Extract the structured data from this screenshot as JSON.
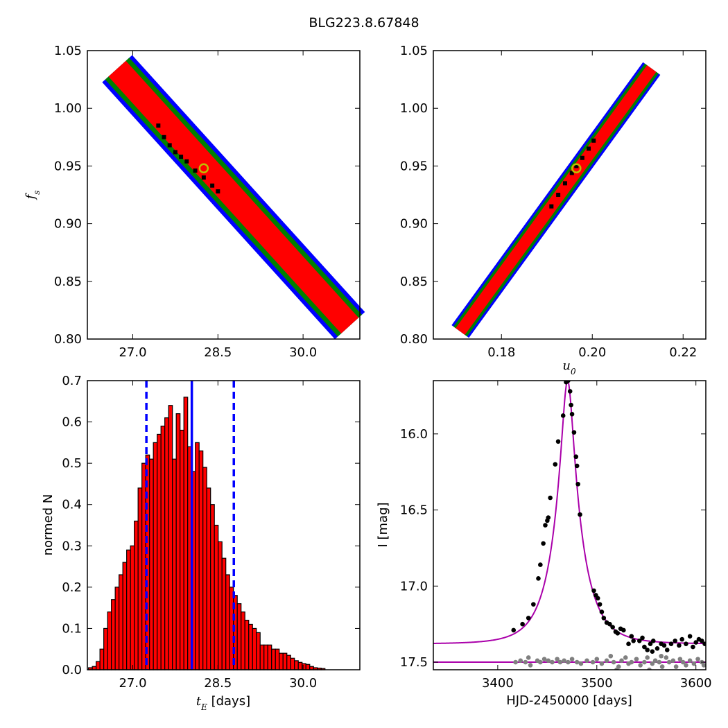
{
  "figure": {
    "title": "BLG223.8.67848"
  },
  "chart_data": [
    {
      "id": "tE_vs_fs",
      "type": "heatmap",
      "title": "",
      "xlabel": "",
      "ylabel": "f_s",
      "xlim": [
        26.2,
        31.0
      ],
      "ylim": [
        0.8,
        1.05
      ],
      "xticks": [
        "27.0",
        "28.5",
        "30.0"
      ],
      "yticks": [
        "0.80",
        "0.85",
        "0.90",
        "0.95",
        "1.00",
        "1.05"
      ],
      "band": {
        "start": [
          26.75,
          1.033
        ],
        "end": [
          30.8,
          0.813
        ],
        "levels": [
          {
            "name": "3-sigma",
            "color": "#0000ff",
            "half_width": 0.32
          },
          {
            "name": "2-sigma",
            "color": "#008000",
            "half_width": 0.25
          },
          {
            "name": "1-sigma",
            "color": "#ff0000",
            "half_width": 0.17
          }
        ]
      },
      "samples": [
        [
          27.45,
          0.985
        ],
        [
          27.55,
          0.975
        ],
        [
          27.65,
          0.968
        ],
        [
          27.75,
          0.962
        ],
        [
          27.85,
          0.958
        ],
        [
          27.95,
          0.954
        ],
        [
          28.1,
          0.946
        ],
        [
          28.25,
          0.94
        ],
        [
          28.4,
          0.933
        ],
        [
          28.5,
          0.928
        ]
      ],
      "best_fit": {
        "x": 28.25,
        "y": 0.948,
        "color": "#bfbf00"
      }
    },
    {
      "id": "u0_vs_fs",
      "type": "heatmap",
      "title": "",
      "xlabel": "u_0",
      "ylabel": "",
      "xlim": [
        0.165,
        0.225
      ],
      "ylim": [
        0.8,
        1.05
      ],
      "xticks": [
        "0.18",
        "0.20",
        "0.22"
      ],
      "yticks": [
        "0.80",
        "0.85",
        "0.90",
        "0.95",
        "1.00",
        "1.05"
      ],
      "band": {
        "start": [
          0.1712,
          0.808
        ],
        "end": [
          0.2128,
          1.033
        ],
        "levels": [
          {
            "name": "3-sigma",
            "color": "#0000ff",
            "half_width": 0.0019
          },
          {
            "name": "2-sigma",
            "color": "#008000",
            "half_width": 0.0014
          },
          {
            "name": "1-sigma",
            "color": "#ff0000",
            "half_width": 0.0008
          }
        ]
      },
      "samples": [
        [
          0.191,
          0.915
        ],
        [
          0.1925,
          0.925
        ],
        [
          0.194,
          0.935
        ],
        [
          0.1955,
          0.944
        ],
        [
          0.1965,
          0.95
        ],
        [
          0.1978,
          0.957
        ],
        [
          0.1992,
          0.965
        ],
        [
          0.2003,
          0.972
        ]
      ],
      "best_fit": {
        "x": 0.1965,
        "y": 0.948,
        "color": "#bfbf00"
      }
    },
    {
      "id": "tE_histogram",
      "type": "bar",
      "title": "",
      "xlabel": "t_E [days]",
      "ylabel": "normed N",
      "xlim": [
        26.2,
        31.0
      ],
      "ylim": [
        0.0,
        0.7
      ],
      "xticks": [
        "27.0",
        "28.5",
        "30.0"
      ],
      "yticks": [
        "0.0",
        "0.1",
        "0.2",
        "0.3",
        "0.4",
        "0.5",
        "0.6",
        "0.7"
      ],
      "bar_color": "#ff0000",
      "bin_start": 26.22,
      "bin_width": 0.0672,
      "values": [
        0.005,
        0.008,
        0.02,
        0.05,
        0.1,
        0.14,
        0.17,
        0.2,
        0.23,
        0.26,
        0.29,
        0.3,
        0.36,
        0.44,
        0.5,
        0.52,
        0.51,
        0.55,
        0.57,
        0.59,
        0.61,
        0.64,
        0.51,
        0.62,
        0.58,
        0.66,
        0.54,
        0.48,
        0.55,
        0.53,
        0.49,
        0.44,
        0.4,
        0.35,
        0.31,
        0.27,
        0.23,
        0.2,
        0.18,
        0.16,
        0.14,
        0.12,
        0.11,
        0.1,
        0.09,
        0.06,
        0.06,
        0.06,
        0.05,
        0.05,
        0.04,
        0.04,
        0.035,
        0.028,
        0.022,
        0.018,
        0.015,
        0.013,
        0.008,
        0.005,
        0.004,
        0.003
      ],
      "median_line": {
        "x": 28.04,
        "color": "#0000ff"
      },
      "interval_lines": {
        "x": [
          27.24,
          28.78
        ],
        "color": "#0000ff"
      }
    },
    {
      "id": "light_curve",
      "type": "scatter",
      "title": "",
      "xlabel": "HJD-2450000 [days]",
      "ylabel": "I [mag]",
      "xlim": [
        3335,
        3610
      ],
      "ylim": [
        17.55,
        15.65
      ],
      "xticks": [
        "3400",
        "3500",
        "3600"
      ],
      "yticks": [
        "16.0",
        "16.5",
        "17.0",
        "17.5"
      ],
      "model": {
        "color": "#aa00aa",
        "t0": 3470.5,
        "u0": 0.1965,
        "tE": 28.1,
        "mag_peak": 15.65,
        "baseline": 17.38
      },
      "baseline_line": {
        "y": 17.5,
        "color": "#aa00aa"
      },
      "series": [
        {
          "name": "",
          "color": "#000000",
          "points": [
            [
              3416,
              17.29
            ],
            [
              3425,
              17.25
            ],
            [
              3431,
              17.21
            ],
            [
              3436,
              17.12
            ],
            [
              3441,
              16.95
            ],
            [
              3443,
              16.86
            ],
            [
              3446,
              16.72
            ],
            [
              3448,
              16.6
            ],
            [
              3450,
              16.57
            ],
            [
              3451,
              16.55
            ],
            [
              3453,
              16.42
            ],
            [
              3458,
              16.2
            ],
            [
              3461,
              16.05
            ],
            [
              3466,
              15.88
            ],
            [
              3469,
              15.66
            ],
            [
              3471,
              15.65
            ],
            [
              3473,
              15.72
            ],
            [
              3474,
              15.81
            ],
            [
              3475,
              15.87
            ],
            [
              3477,
              15.99
            ],
            [
              3479,
              16.15
            ],
            [
              3480,
              16.21
            ],
            [
              3481,
              16.33
            ],
            [
              3483,
              16.53
            ],
            [
              3497,
              17.03
            ],
            [
              3499,
              17.06
            ],
            [
              3501,
              17.08
            ],
            [
              3503,
              17.12
            ],
            [
              3505,
              17.17
            ],
            [
              3507,
              17.21
            ],
            [
              3510,
              17.24
            ],
            [
              3513,
              17.25
            ],
            [
              3516,
              17.27
            ],
            [
              3519,
              17.3
            ],
            [
              3521,
              17.31
            ],
            [
              3524,
              17.28
            ],
            [
              3527,
              17.29
            ],
            [
              3532,
              17.38
            ],
            [
              3535,
              17.33
            ],
            [
              3537,
              17.36
            ],
            [
              3543,
              17.36
            ],
            [
              3548,
              17.4
            ],
            [
              3551,
              17.42
            ],
            [
              3554,
              17.38
            ],
            [
              3557,
              17.36
            ],
            [
              3561,
              17.41
            ],
            [
              3565,
              17.38
            ],
            [
              3568,
              17.39
            ],
            [
              3571,
              17.42
            ],
            [
              3575,
              17.38
            ],
            [
              3579,
              17.36
            ],
            [
              3583,
              17.39
            ],
            [
              3586,
              17.35
            ],
            [
              3590,
              17.38
            ],
            [
              3594,
              17.33
            ],
            [
              3597,
              17.4
            ],
            [
              3600,
              17.37
            ],
            [
              3603,
              17.35
            ],
            [
              3606,
              17.36
            ],
            [
              3609,
              17.38
            ],
            [
              3546,
              17.34
            ],
            [
              3556,
              17.43
            ]
          ]
        },
        {
          "name": "",
          "color": "#808080",
          "points": [
            [
              3418,
              17.5
            ],
            [
              3423,
              17.49
            ],
            [
              3428,
              17.5
            ],
            [
              3431,
              17.47
            ],
            [
              3433,
              17.52
            ],
            [
              3440,
              17.49
            ],
            [
              3443,
              17.5
            ],
            [
              3447,
              17.48
            ],
            [
              3451,
              17.49
            ],
            [
              3455,
              17.5
            ],
            [
              3460,
              17.48
            ],
            [
              3463,
              17.5
            ],
            [
              3467,
              17.49
            ],
            [
              3471,
              17.5
            ],
            [
              3475,
              17.48
            ],
            [
              3480,
              17.5
            ],
            [
              3484,
              17.51
            ],
            [
              3490,
              17.49
            ],
            [
              3496,
              17.5
            ],
            [
              3500,
              17.48
            ],
            [
              3505,
              17.51
            ],
            [
              3510,
              17.49
            ],
            [
              3514,
              17.46
            ],
            [
              3517,
              17.5
            ],
            [
              3522,
              17.53
            ],
            [
              3525,
              17.49
            ],
            [
              3529,
              17.47
            ],
            [
              3532,
              17.51
            ],
            [
              3535,
              17.5
            ],
            [
              3540,
              17.48
            ],
            [
              3544,
              17.52
            ],
            [
              3548,
              17.5
            ],
            [
              3551,
              17.47
            ],
            [
              3553,
              17.55
            ],
            [
              3556,
              17.51
            ],
            [
              3559,
              17.49
            ],
            [
              3563,
              17.5
            ],
            [
              3566,
              17.53
            ],
            [
              3570,
              17.47
            ],
            [
              3573,
              17.5
            ],
            [
              3577,
              17.49
            ],
            [
              3580,
              17.53
            ],
            [
              3584,
              17.48
            ],
            [
              3587,
              17.5
            ],
            [
              3590,
              17.52
            ],
            [
              3594,
              17.49
            ],
            [
              3598,
              17.51
            ],
            [
              3602,
              17.48
            ],
            [
              3606,
              17.5
            ],
            [
              3608,
              17.52
            ],
            [
              3520,
              17.55
            ],
            [
              3565,
              17.46
            ]
          ]
        }
      ]
    }
  ]
}
